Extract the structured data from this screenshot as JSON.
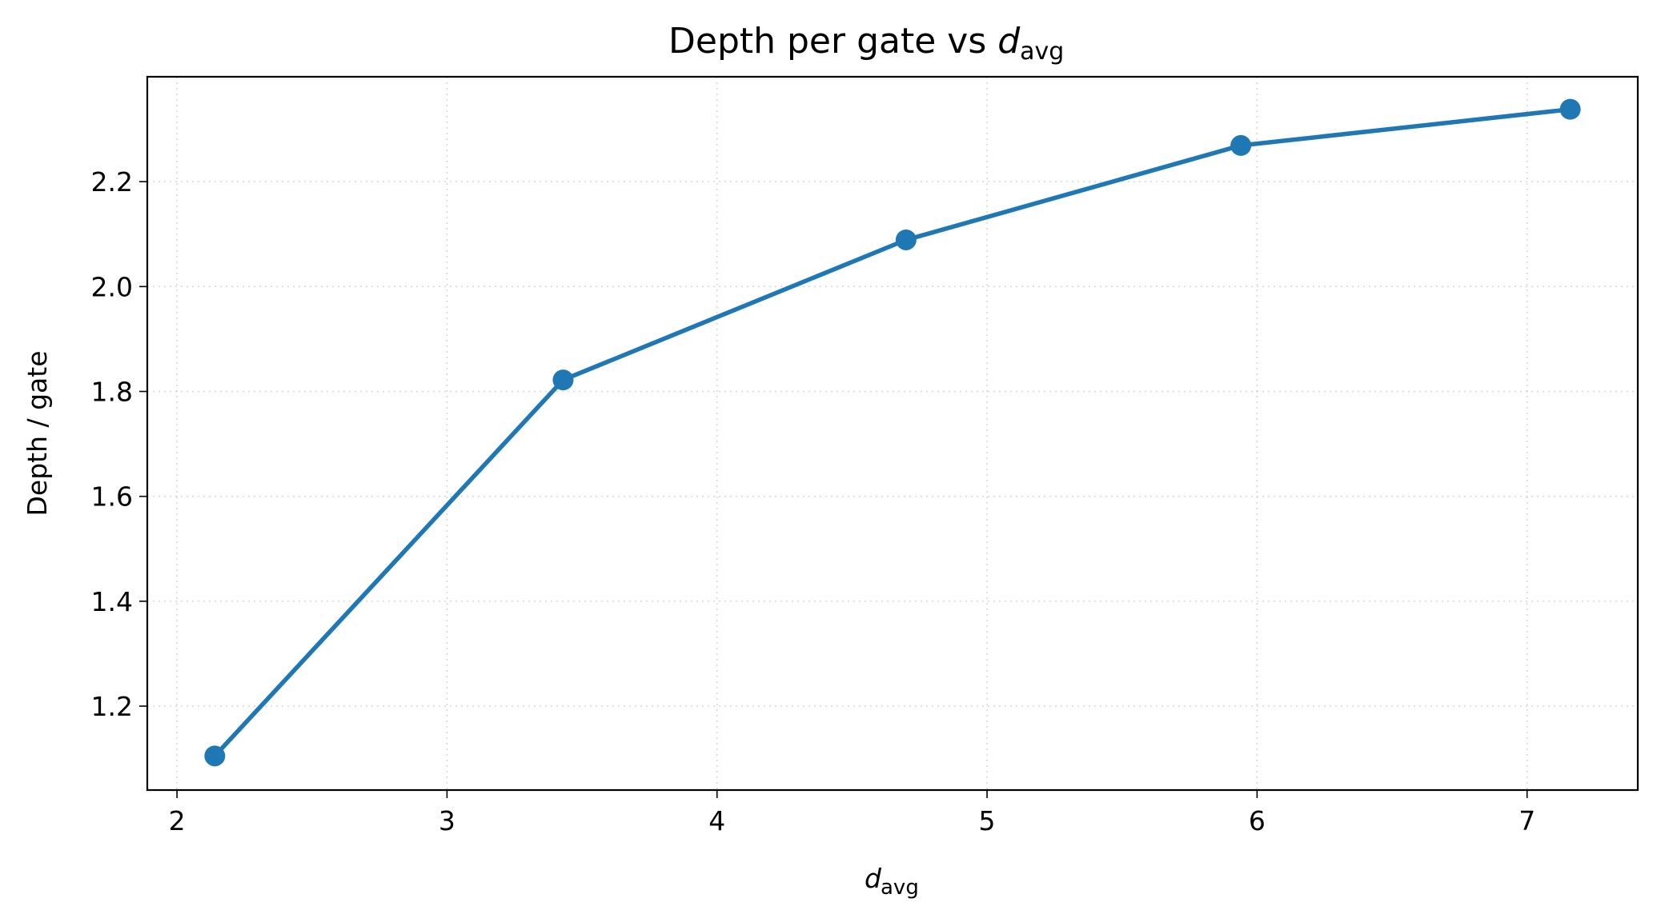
{
  "chart_data": {
    "type": "line",
    "title": "Depth per gate vs d",
    "title_subscript": "avg",
    "xlabel": "d",
    "xlabel_subscript": "avg",
    "ylabel": "Depth / gate",
    "x": [
      2.14,
      3.43,
      4.7,
      5.94,
      7.16
    ],
    "series": [
      {
        "values": [
          1.105,
          1.822,
          2.089,
          2.269,
          2.338
        ],
        "color": "#1f77b4",
        "marker": "circle"
      }
    ],
    "xlim": [
      1.89,
      7.41
    ],
    "ylim": [
      1.04,
      2.4
    ],
    "xticks": [
      2,
      3,
      4,
      5,
      6,
      7
    ],
    "xtick_labels": [
      "2",
      "3",
      "4",
      "5",
      "6",
      "7"
    ],
    "yticks": [
      1.2,
      1.4,
      1.6,
      1.8,
      2.0,
      2.2
    ],
    "ytick_labels": [
      "1.2",
      "1.4",
      "1.6",
      "1.8",
      "2.0",
      "2.2"
    ],
    "grid": true,
    "grid_style": "dotted",
    "legend": false
  }
}
